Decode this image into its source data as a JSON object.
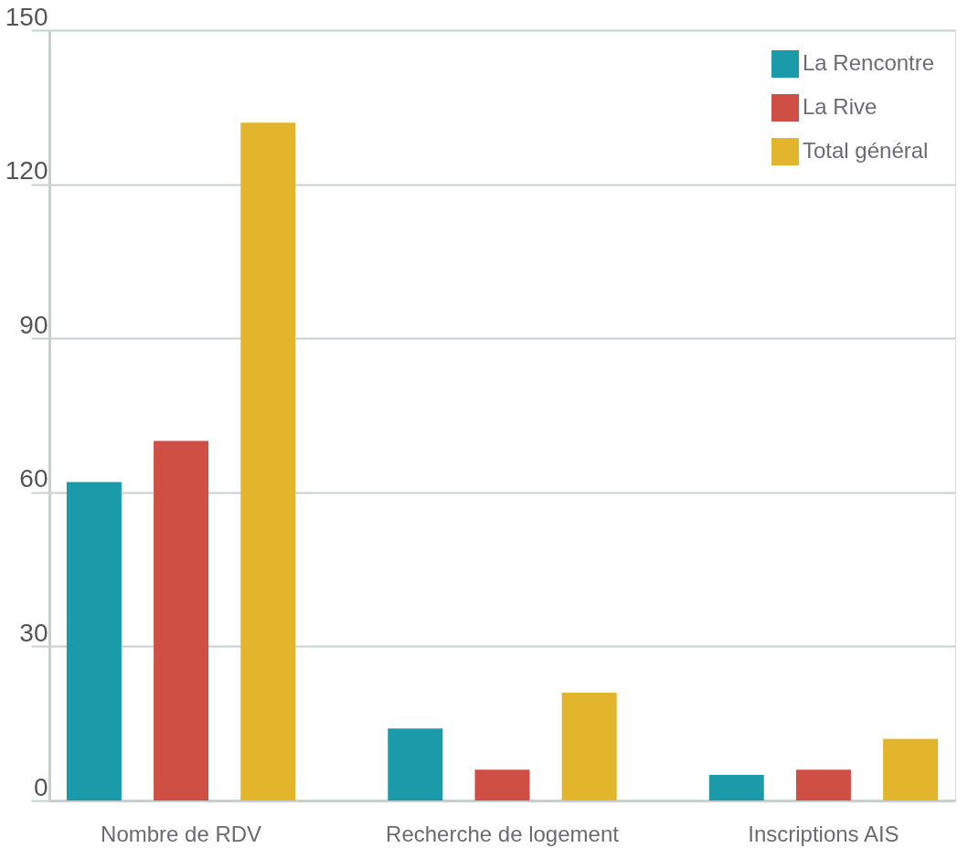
{
  "chart_data": {
    "type": "bar",
    "categories": [
      "Nombre de RDV",
      "Recherche de logement",
      "Inscriptions AIS"
    ],
    "series": [
      {
        "name": "La Rencontre",
        "color": "#1b9aaa",
        "values": [
          62,
          14,
          5
        ]
      },
      {
        "name": "La Rive",
        "color": "#cf4f45",
        "values": [
          70,
          6,
          6
        ]
      },
      {
        "name": "Total général",
        "color": "#e3b52d",
        "values": [
          132,
          21,
          12
        ]
      }
    ],
    "ylim": [
      0,
      150
    ],
    "yticks": [
      0,
      30,
      60,
      90,
      120,
      150
    ],
    "grid": "y",
    "legend": "top right"
  }
}
